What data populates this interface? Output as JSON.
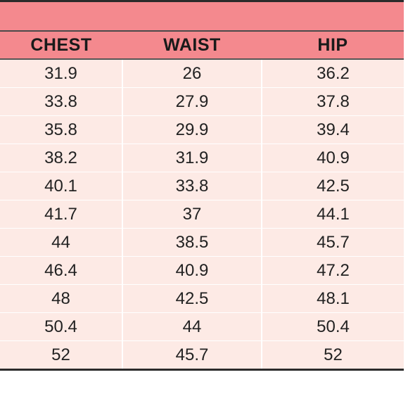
{
  "table": {
    "title": "",
    "headers": [
      "CHEST",
      "WAIST",
      "HIP"
    ],
    "rows": [
      [
        "31.9",
        "26",
        "36.2"
      ],
      [
        "33.8",
        "27.9",
        "37.8"
      ],
      [
        "35.8",
        "29.9",
        "39.4"
      ],
      [
        "38.2",
        "31.9",
        "40.9"
      ],
      [
        "40.1",
        "33.8",
        "42.5"
      ],
      [
        "41.7",
        "37",
        "44.1"
      ],
      [
        "44",
        "38.5",
        "45.7"
      ],
      [
        "46.4",
        "40.9",
        "47.2"
      ],
      [
        "48",
        "42.5",
        "48.1"
      ],
      [
        "50.4",
        "44",
        "50.4"
      ],
      [
        "52",
        "45.7",
        "52"
      ]
    ]
  },
  "colors": {
    "header_bg": "#f4898e",
    "row_bg": "#fdeae5",
    "border": "#2b2b2b"
  }
}
